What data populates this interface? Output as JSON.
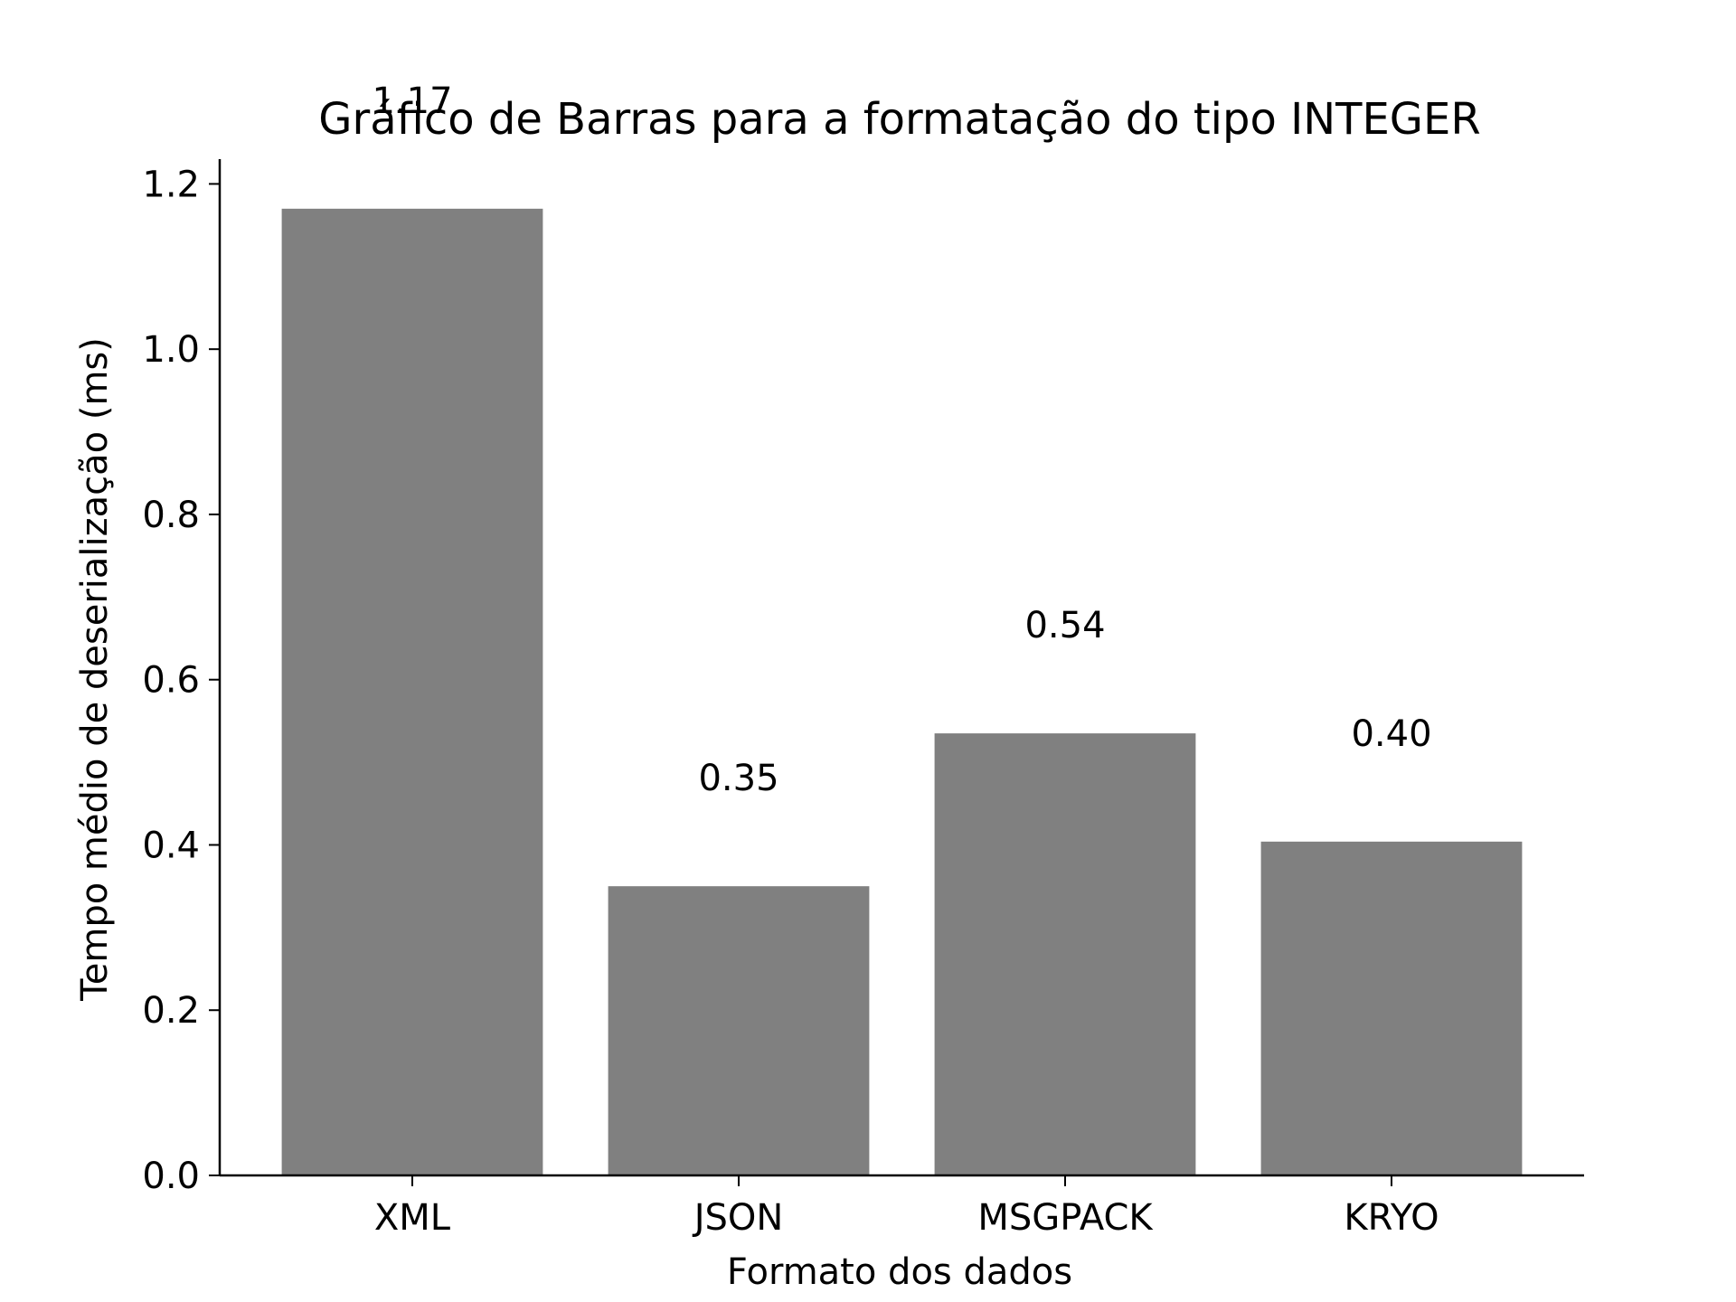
{
  "chart_data": {
    "type": "bar",
    "title": "Gráfico de Barras para a formatação do tipo INTEGER",
    "xlabel": "Formato dos dados",
    "ylabel": "Tempo médio de deserialização (ms)",
    "categories": [
      "XML",
      "JSON",
      "MSGPACK",
      "KRYO"
    ],
    "values": [
      1.17,
      0.35,
      0.535,
      0.404
    ],
    "data_labels": [
      "1.17",
      "0.35",
      "0.54",
      "0.40"
    ],
    "ylim": [
      0,
      1.23
    ],
    "yticks": [
      0.0,
      0.2,
      0.4,
      0.6,
      0.8,
      1.0,
      1.2
    ],
    "ytick_labels": [
      "0.0",
      "0.2",
      "0.4",
      "0.6",
      "0.8",
      "1.0",
      "1.2"
    ],
    "bar_color": "#808080",
    "grid": false,
    "legend": "none"
  }
}
